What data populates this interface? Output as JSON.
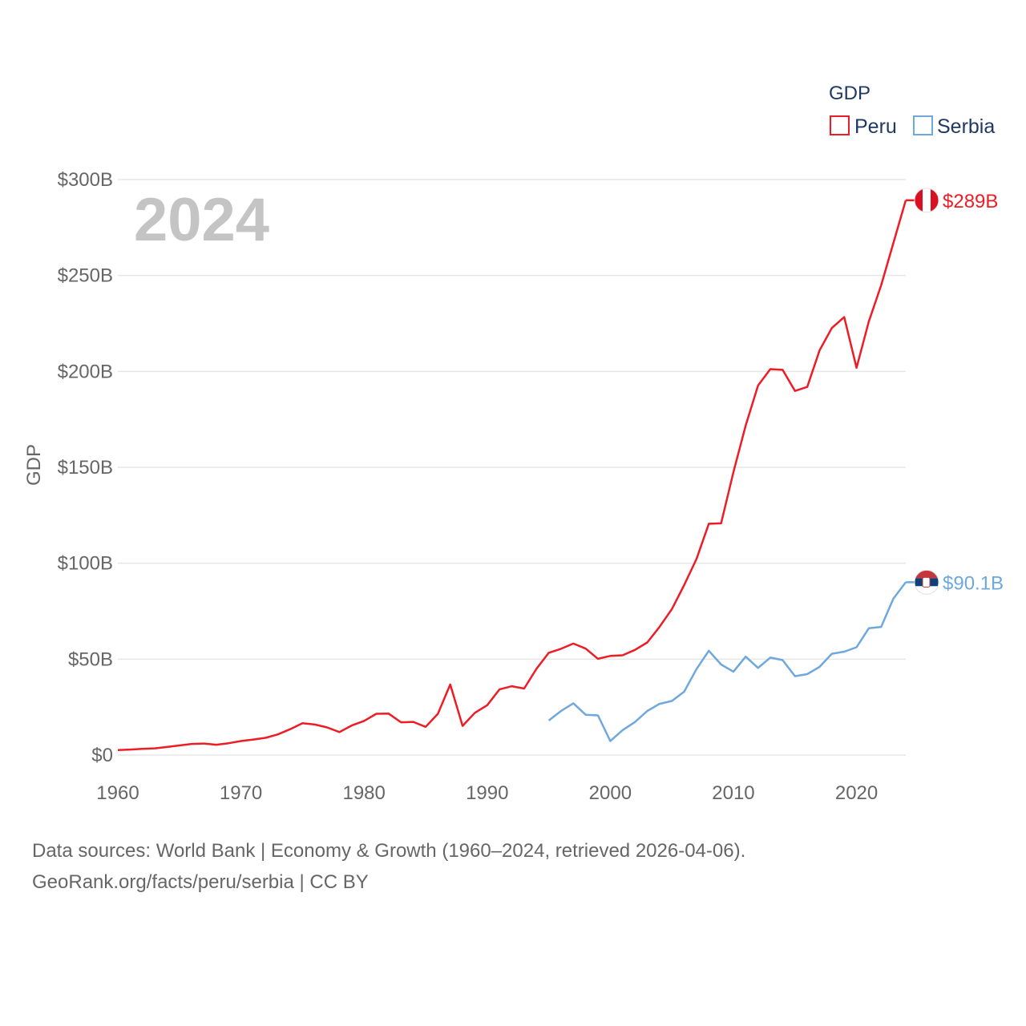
{
  "chart_data": {
    "type": "line",
    "title": "",
    "year_label": "2024",
    "xlabel": "",
    "ylabel": "GDP",
    "xlim": [
      1960,
      2024
    ],
    "ylim": [
      0,
      300
    ],
    "y_ticks": [
      {
        "value": 0,
        "label": "$0"
      },
      {
        "value": 50,
        "label": "$50B"
      },
      {
        "value": 100,
        "label": "$100B"
      },
      {
        "value": 150,
        "label": "$150B"
      },
      {
        "value": 200,
        "label": "$200B"
      },
      {
        "value": 250,
        "label": "$250B"
      },
      {
        "value": 300,
        "label": "$300B"
      }
    ],
    "x_ticks": [
      {
        "value": 1960,
        "label": "1960"
      },
      {
        "value": 1970,
        "label": "1970"
      },
      {
        "value": 1980,
        "label": "1980"
      },
      {
        "value": 1990,
        "label": "1990"
      },
      {
        "value": 2000,
        "label": "2000"
      },
      {
        "value": 2010,
        "label": "2010"
      },
      {
        "value": 2020,
        "label": "2020"
      }
    ],
    "legend": {
      "title": "GDP",
      "position": "top-right"
    },
    "series": [
      {
        "name": "Peru",
        "color": "#ee1c25",
        "end_label": "$289B",
        "flag": "peru-flag",
        "points": [
          [
            1960,
            2.6
          ],
          [
            1961,
            2.9
          ],
          [
            1962,
            3.2
          ],
          [
            1963,
            3.5
          ],
          [
            1964,
            4.2
          ],
          [
            1965,
            5.0
          ],
          [
            1966,
            5.8
          ],
          [
            1967,
            6.0
          ],
          [
            1968,
            5.4
          ],
          [
            1969,
            6.2
          ],
          [
            1970,
            7.3
          ],
          [
            1971,
            8.1
          ],
          [
            1972,
            9.0
          ],
          [
            1973,
            10.8
          ],
          [
            1974,
            13.5
          ],
          [
            1975,
            16.6
          ],
          [
            1976,
            15.9
          ],
          [
            1977,
            14.4
          ],
          [
            1978,
            12.0
          ],
          [
            1979,
            15.4
          ],
          [
            1980,
            17.8
          ],
          [
            1981,
            21.5
          ],
          [
            1982,
            21.6
          ],
          [
            1983,
            17.1
          ],
          [
            1984,
            17.3
          ],
          [
            1985,
            14.7
          ],
          [
            1986,
            21.5
          ],
          [
            1987,
            36.8
          ],
          [
            1988,
            15.2
          ],
          [
            1989,
            22.0
          ],
          [
            1990,
            26.0
          ],
          [
            1991,
            34.2
          ],
          [
            1992,
            35.9
          ],
          [
            1993,
            34.7
          ],
          [
            1994,
            44.9
          ],
          [
            1995,
            53.3
          ],
          [
            1996,
            55.4
          ],
          [
            1997,
            58.1
          ],
          [
            1998,
            55.5
          ],
          [
            1999,
            50.2
          ],
          [
            2000,
            51.7
          ],
          [
            2001,
            52.0
          ],
          [
            2002,
            54.8
          ],
          [
            2003,
            58.7
          ],
          [
            2004,
            66.8
          ],
          [
            2005,
            76.1
          ],
          [
            2006,
            88.6
          ],
          [
            2007,
            102.2
          ],
          [
            2008,
            120.6
          ],
          [
            2009,
            120.8
          ],
          [
            2010,
            147.5
          ],
          [
            2011,
            171.8
          ],
          [
            2012,
            192.6
          ],
          [
            2013,
            201.2
          ],
          [
            2014,
            200.8
          ],
          [
            2015,
            189.8
          ],
          [
            2016,
            191.9
          ],
          [
            2017,
            211.0
          ],
          [
            2018,
            222.6
          ],
          [
            2019,
            228.3
          ],
          [
            2020,
            201.9
          ],
          [
            2021,
            226.0
          ],
          [
            2022,
            244.9
          ],
          [
            2023,
            267.0
          ],
          [
            2024,
            289.2
          ]
        ]
      },
      {
        "name": "Serbia",
        "color": "#6fa8dc",
        "end_label": "$90.1B",
        "flag": "serbia-flag",
        "points": [
          [
            1995,
            18.0
          ],
          [
            1996,
            23.0
          ],
          [
            1997,
            27.0
          ],
          [
            1998,
            21.0
          ],
          [
            1999,
            20.7
          ],
          [
            2000,
            7.3
          ],
          [
            2001,
            13.0
          ],
          [
            2002,
            17.2
          ],
          [
            2003,
            23.0
          ],
          [
            2004,
            26.7
          ],
          [
            2005,
            28.2
          ],
          [
            2006,
            33.0
          ],
          [
            2007,
            44.8
          ],
          [
            2008,
            54.4
          ],
          [
            2009,
            47.2
          ],
          [
            2010,
            43.5
          ],
          [
            2011,
            51.3
          ],
          [
            2012,
            45.4
          ],
          [
            2013,
            50.8
          ],
          [
            2014,
            49.5
          ],
          [
            2015,
            41.1
          ],
          [
            2016,
            42.2
          ],
          [
            2017,
            46.0
          ],
          [
            2018,
            52.8
          ],
          [
            2019,
            53.9
          ],
          [
            2020,
            56.2
          ],
          [
            2021,
            66.1
          ],
          [
            2022,
            66.8
          ],
          [
            2023,
            81.6
          ],
          [
            2024,
            90.1
          ]
        ]
      }
    ]
  },
  "footer": {
    "source_line": "Data sources: World Bank | Economy & Growth (1960–2024, retrieved 2026-04-06).",
    "license_line": "GeoRank.org/facts/peru/serbia | CC BY"
  }
}
